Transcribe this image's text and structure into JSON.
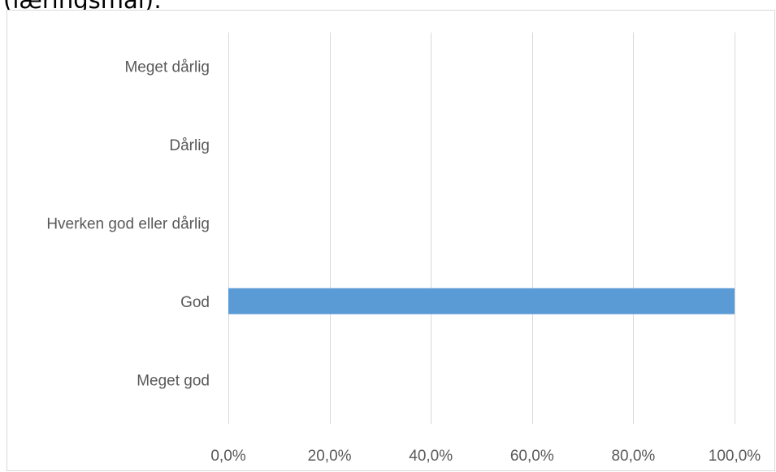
{
  "heading": "(læringsmål):",
  "chart_data": {
    "type": "bar",
    "orientation": "horizontal",
    "categories": [
      "Meget dårlig",
      "Dårlig",
      "Hverken god eller dårlig",
      "God",
      "Meget god"
    ],
    "values": [
      0,
      0,
      0,
      100,
      0
    ],
    "xlim": [
      0,
      100
    ],
    "x_ticks": [
      0,
      20,
      40,
      60,
      80,
      100
    ],
    "x_tick_labels": [
      "0,0%",
      "20,0%",
      "40,0%",
      "60,0%",
      "80,0%",
      "100,0%"
    ],
    "grid": true,
    "legend": "none",
    "bar_color": "#5b9bd5",
    "grid_color": "#d9d9d9"
  }
}
